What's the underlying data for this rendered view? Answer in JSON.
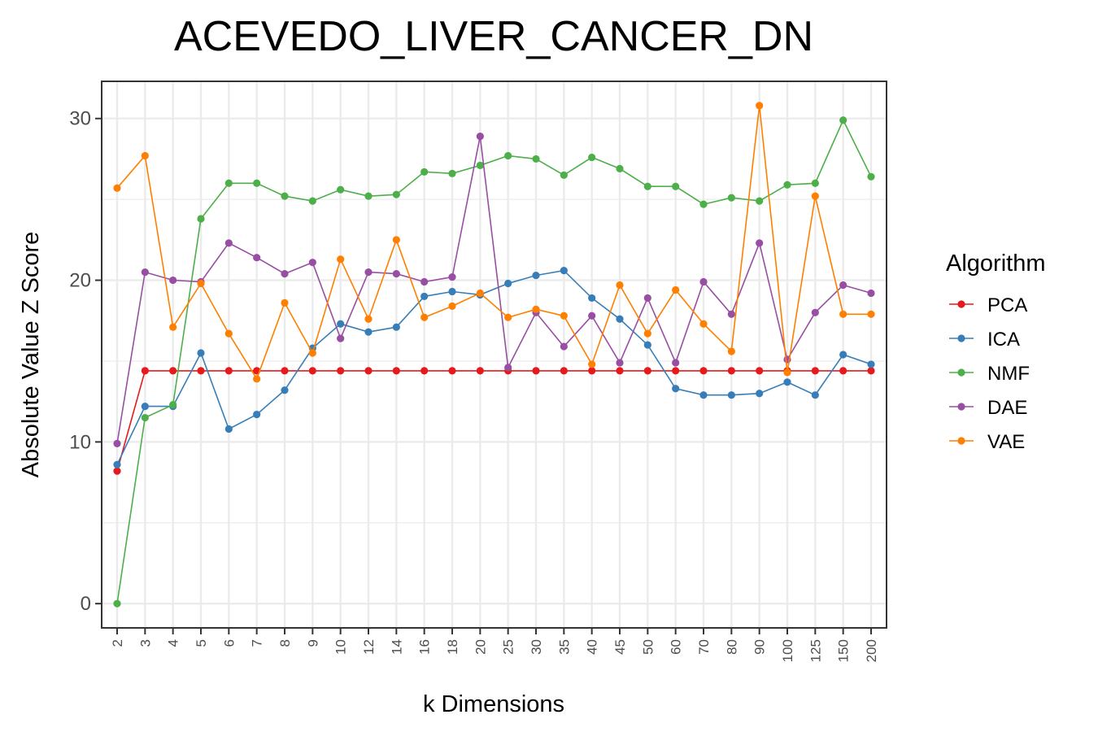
{
  "chart_data": {
    "type": "line",
    "title": "ACEVEDO_LIVER_CANCER_DN",
    "xlabel": "k Dimensions",
    "ylabel": "Absolute Value Z Score",
    "categories": [
      "2",
      "3",
      "4",
      "5",
      "6",
      "7",
      "8",
      "9",
      "10",
      "12",
      "14",
      "16",
      "18",
      "20",
      "25",
      "30",
      "35",
      "40",
      "45",
      "50",
      "60",
      "70",
      "80",
      "90",
      "100",
      "125",
      "150",
      "200"
    ],
    "ylim": [
      -1.5,
      32.3
    ],
    "yticks": [
      0,
      10,
      20,
      30
    ],
    "grid": true,
    "legend": {
      "title": "Algorithm",
      "position": "right"
    },
    "series": [
      {
        "name": "PCA",
        "color": "#E41A1C",
        "values": [
          8.2,
          14.4,
          14.4,
          14.4,
          14.4,
          14.4,
          14.4,
          14.4,
          14.4,
          14.4,
          14.4,
          14.4,
          14.4,
          14.4,
          14.4,
          14.4,
          14.4,
          14.4,
          14.4,
          14.4,
          14.4,
          14.4,
          14.4,
          14.4,
          14.4,
          14.4,
          14.4,
          14.4
        ]
      },
      {
        "name": "ICA",
        "color": "#377EB8",
        "values": [
          8.6,
          12.2,
          12.2,
          15.5,
          10.8,
          11.7,
          13.2,
          15.8,
          17.3,
          16.8,
          17.1,
          19.0,
          19.3,
          19.1,
          19.8,
          20.3,
          20.6,
          18.9,
          17.6,
          16.0,
          13.3,
          12.9,
          12.9,
          13.0,
          13.7,
          12.9,
          15.4,
          14.8
        ]
      },
      {
        "name": "NMF",
        "color": "#4DAF4A",
        "values": [
          0.0,
          11.5,
          12.3,
          23.8,
          26.0,
          26.0,
          25.2,
          24.9,
          25.6,
          25.2,
          25.3,
          26.7,
          26.6,
          27.1,
          27.7,
          27.5,
          26.5,
          27.6,
          26.9,
          25.8,
          25.8,
          24.7,
          25.1,
          24.9,
          25.9,
          26.0,
          29.9,
          26.4
        ]
      },
      {
        "name": "DAE",
        "color": "#984EA3",
        "values": [
          9.9,
          20.5,
          20.0,
          19.9,
          22.3,
          21.4,
          20.4,
          21.1,
          16.4,
          20.5,
          20.4,
          19.9,
          20.2,
          28.9,
          14.6,
          18.0,
          15.9,
          17.8,
          14.9,
          18.9,
          14.9,
          19.9,
          17.9,
          22.3,
          15.1,
          18.0,
          19.7,
          19.2
        ]
      },
      {
        "name": "VAE",
        "color": "#FF7F00",
        "values": [
          25.7,
          27.7,
          17.1,
          19.8,
          16.7,
          13.9,
          18.6,
          15.5,
          21.3,
          17.6,
          22.5,
          17.7,
          18.4,
          19.2,
          17.7,
          18.2,
          17.8,
          14.8,
          19.7,
          16.7,
          19.4,
          17.3,
          15.6,
          30.8,
          14.3,
          25.2,
          17.9,
          17.9
        ]
      }
    ]
  }
}
